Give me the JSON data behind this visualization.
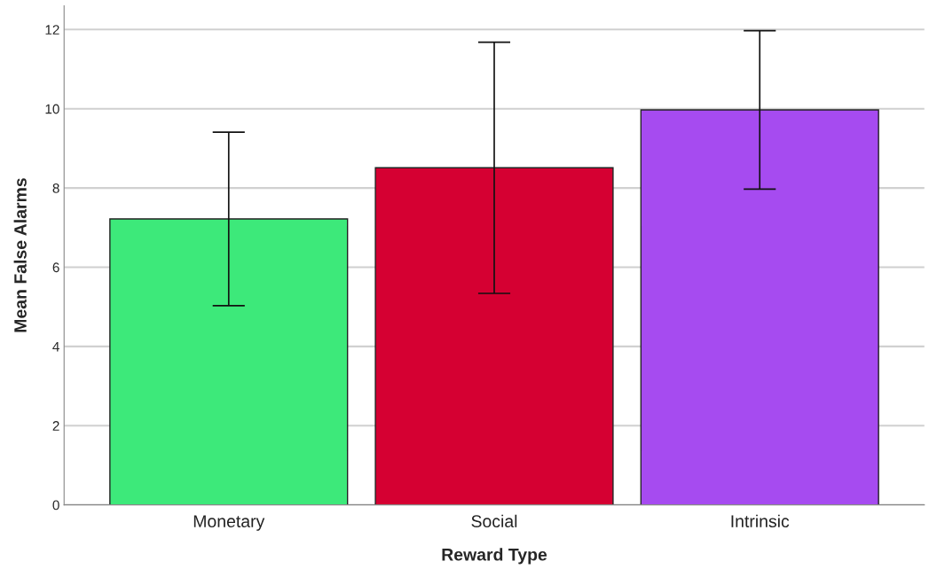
{
  "chart_data": {
    "type": "bar",
    "xlabel": "Reward Type",
    "ylabel": "Mean False Alarms",
    "categories": [
      "Monetary",
      "Social",
      "Intrinsic"
    ],
    "values": [
      7.22,
      8.51,
      9.97
    ],
    "errors": [
      2.19,
      3.17,
      2.0
    ],
    "colors": [
      "#3de97a",
      "#d50032",
      "#a64bf0"
    ],
    "ylim": [
      0,
      12.6
    ],
    "yticks": [
      0,
      2,
      4,
      6,
      8,
      10,
      12
    ],
    "grid": "y",
    "legend": false
  }
}
